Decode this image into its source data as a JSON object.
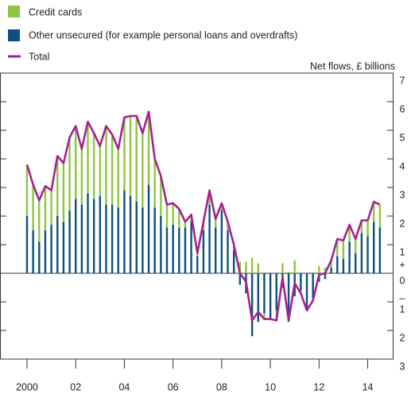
{
  "chart_data": {
    "type": "stacked-bar-line",
    "y_axis_label": "Net flows, £ billions",
    "y_sign_labels": {
      "positive": "+",
      "negative": "–"
    },
    "x": [
      2000,
      2000.25,
      2000.5,
      2000.75,
      2001,
      2001.25,
      2001.5,
      2001.75,
      2002,
      2002.25,
      2002.5,
      2002.75,
      2003,
      2003.25,
      2003.5,
      2003.75,
      2004,
      2004.25,
      2004.5,
      2004.75,
      2005,
      2005.25,
      2005.5,
      2005.75,
      2006,
      2006.25,
      2006.5,
      2006.75,
      2007,
      2007.25,
      2007.5,
      2007.75,
      2008,
      2008.25,
      2008.5,
      2008.75,
      2009,
      2009.25,
      2009.5,
      2009.75,
      2010,
      2010.25,
      2010.5,
      2010.75,
      2011,
      2011.25,
      2011.5,
      2011.75,
      2012,
      2012.25,
      2012.5,
      2012.75,
      2013,
      2013.25,
      2013.5,
      2013.75,
      2014,
      2014.25,
      2014.5
    ],
    "series": [
      {
        "name": "Credit cards",
        "color": "#8dc63f",
        "kind": "bar",
        "values": [
          1.8,
          1.6,
          1.45,
          1.55,
          1.2,
          2.1,
          2.05,
          2.55,
          2.55,
          1.95,
          2.5,
          2.3,
          1.75,
          2.75,
          2.45,
          2.05,
          2.55,
          2.8,
          3.0,
          2.6,
          2.55,
          1.7,
          1.4,
          0.8,
          0.75,
          0.65,
          0.2,
          0.25,
          0.1,
          0.3,
          0.5,
          0.3,
          0.25,
          0.3,
          0.2,
          0.4,
          0.4,
          0.55,
          0.35,
          -0.2,
          0,
          -0.35,
          0.35,
          0.05,
          0.45,
          -0.1,
          0,
          -0.05,
          0.25,
          0.2,
          0.25,
          0.6,
          0.65,
          0.6,
          0.5,
          0.45,
          0.55,
          0.7,
          0.8
        ]
      },
      {
        "name": "Other unsecured (for example personal loans and overdrafts)",
        "color": "#0d4f80",
        "kind": "bar",
        "values": [
          2.0,
          1.5,
          1.1,
          1.5,
          1.7,
          2.0,
          1.8,
          2.2,
          2.6,
          2.4,
          2.8,
          2.6,
          2.7,
          2.4,
          2.4,
          2.3,
          2.9,
          2.7,
          2.5,
          2.3,
          3.1,
          2.3,
          2.0,
          1.6,
          1.7,
          1.6,
          1.6,
          1.8,
          0.6,
          1.5,
          2.4,
          1.6,
          2.2,
          1.5,
          0.8,
          -0.4,
          -0.7,
          -2.2,
          -1.7,
          -1.4,
          -1.6,
          -1.3,
          -0.5,
          -1.7,
          -0.8,
          -0.6,
          -1.3,
          -0.9,
          -0.3,
          -0.2,
          0.2,
          0.6,
          0.5,
          1.1,
          0.7,
          1.4,
          1.3,
          1.8,
          1.6
        ]
      },
      {
        "name": "Total",
        "color": "#a3238e",
        "kind": "line",
        "values": [
          3.8,
          3.1,
          2.55,
          3.05,
          2.9,
          4.1,
          3.85,
          4.75,
          5.15,
          4.35,
          5.3,
          4.9,
          4.45,
          5.15,
          4.85,
          4.35,
          5.45,
          5.5,
          5.5,
          4.9,
          5.65,
          4.0,
          3.4,
          2.4,
          2.45,
          2.25,
          1.8,
          2.05,
          0.7,
          1.8,
          2.9,
          1.9,
          2.45,
          1.8,
          1.0,
          0,
          -0.3,
          -1.65,
          -1.35,
          -1.6,
          -1.6,
          -1.65,
          -0.15,
          -1.65,
          -0.35,
          -0.7,
          -1.3,
          -0.95,
          -0.05,
          0,
          0.45,
          1.2,
          1.15,
          1.7,
          1.2,
          1.85,
          1.85,
          2.5,
          2.4
        ]
      }
    ],
    "xlim": [
      1998.89,
      2015.06
    ],
    "xticks": [
      {
        "value": 2000,
        "label": "2000"
      },
      {
        "value": 2002,
        "label": "02"
      },
      {
        "value": 2004,
        "label": "04"
      },
      {
        "value": 2006,
        "label": "06"
      },
      {
        "value": 2008,
        "label": "08"
      },
      {
        "value": 2010,
        "label": "10"
      },
      {
        "value": 2012,
        "label": "12"
      },
      {
        "value": 2014,
        "label": "14"
      }
    ],
    "ylim": [
      -3,
      7
    ],
    "yticks": [
      7,
      6,
      5,
      4,
      3,
      2,
      1,
      0,
      {
        "value": -1,
        "label": "1"
      },
      {
        "value": -2,
        "label": "2"
      },
      {
        "value": -3,
        "label": "3"
      }
    ]
  }
}
